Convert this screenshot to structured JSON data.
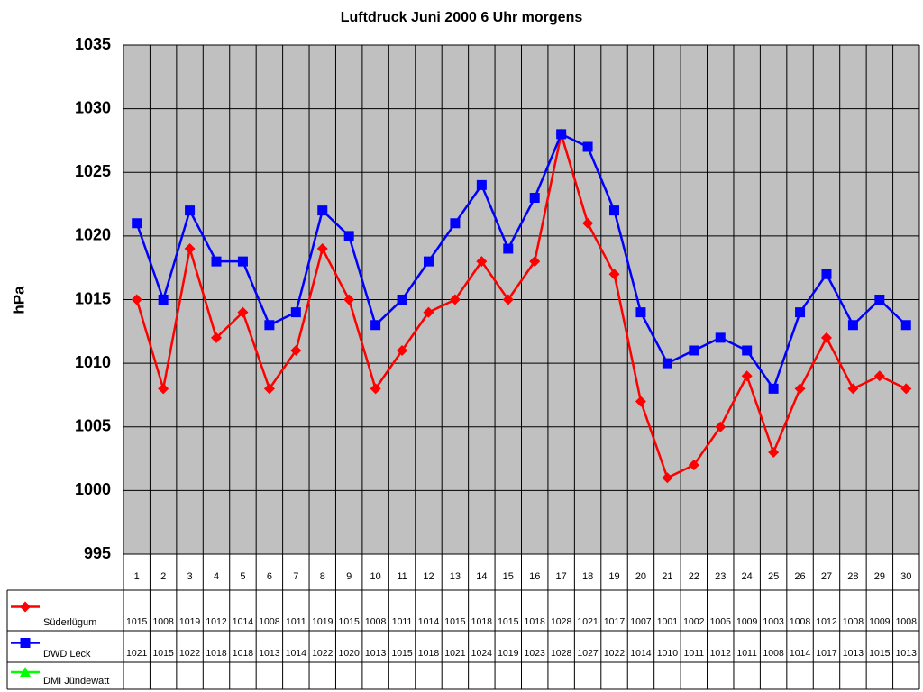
{
  "chart_data": {
    "type": "line",
    "title": "Luftdruck Juni 2000 6 Uhr morgens",
    "y_label": "hPa",
    "categories": [
      "1",
      "2",
      "3",
      "4",
      "5",
      "6",
      "7",
      "8",
      "9",
      "10",
      "11",
      "12",
      "13",
      "14",
      "15",
      "16",
      "17",
      "18",
      "19",
      "20",
      "21",
      "22",
      "23",
      "24",
      "25",
      "26",
      "27",
      "28",
      "29",
      "30"
    ],
    "series": [
      {
        "name": "Süderlügum",
        "color": "#ff0000",
        "marker": "diamond",
        "values": [
          1015,
          1008,
          1019,
          1012,
          1014,
          1008,
          1011,
          1019,
          1015,
          1008,
          1011,
          1014,
          1015,
          1018,
          1015,
          1018,
          1028,
          1021,
          1017,
          1007,
          1001,
          1002,
          1005,
          1009,
          1003,
          1008,
          1012,
          1008,
          1009,
          1008
        ]
      },
      {
        "name": "DWD Leck",
        "color": "#0000ff",
        "marker": "square",
        "values": [
          1021,
          1015,
          1022,
          1018,
          1018,
          1013,
          1014,
          1022,
          1020,
          1013,
          1015,
          1018,
          1021,
          1024,
          1019,
          1023,
          1028,
          1027,
          1022,
          1014,
          1010,
          1011,
          1012,
          1011,
          1008,
          1014,
          1017,
          1013,
          1015,
          1013
        ]
      },
      {
        "name": "DMI Jündewatt",
        "color": "#00ff00",
        "marker": "triangle",
        "values": [
          null,
          null,
          null,
          null,
          null,
          null,
          null,
          null,
          null,
          null,
          null,
          null,
          null,
          null,
          null,
          null,
          null,
          null,
          null,
          null,
          null,
          null,
          null,
          null,
          null,
          null,
          null,
          null,
          null,
          null
        ]
      }
    ],
    "ylim": [
      995,
      1035
    ],
    "yticks": [
      995,
      1000,
      1005,
      1010,
      1015,
      1020,
      1025,
      1030,
      1035
    ],
    "grid": true
  }
}
